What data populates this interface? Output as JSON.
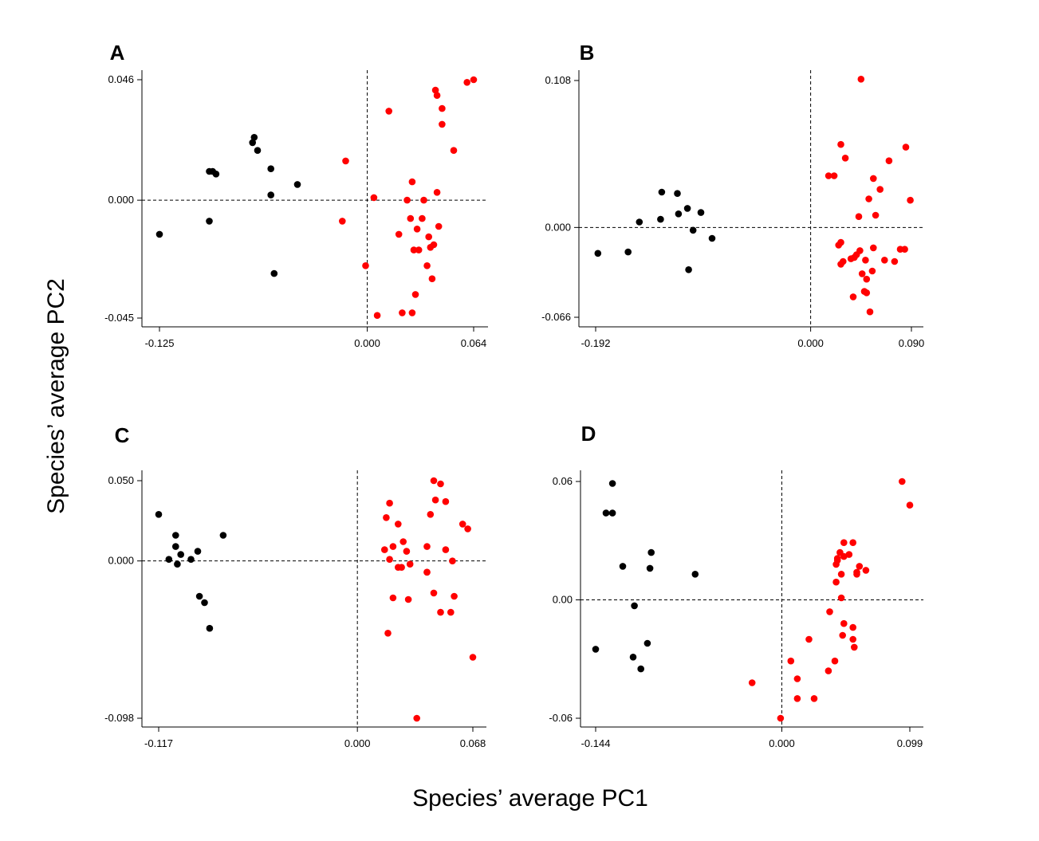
{
  "figure": {
    "xlabel": "Species’ average PC1",
    "ylabel": "Species’ average PC2"
  },
  "colors": {
    "group_black": "#000000",
    "group_red": "#ff0000",
    "reference": "#000000"
  },
  "chart_data": [
    {
      "type": "scatter",
      "panel": "A",
      "xlim": [
        -0.125,
        0.064
      ],
      "ylim": [
        -0.045,
        0.046
      ],
      "xticks": [
        "-0.125",
        "0.000",
        "0.064"
      ],
      "yticks": [
        "0.046",
        "0.000",
        "-0.045"
      ],
      "reference_lines": {
        "x": 0,
        "y": 0
      },
      "grid": false,
      "series": [
        {
          "color": "#000000",
          "points": [
            [
              -0.125,
              -0.013
            ],
            [
              -0.095,
              0.011
            ],
            [
              -0.093,
              0.011
            ],
            [
              -0.091,
              0.01
            ],
            [
              -0.095,
              -0.008
            ],
            [
              -0.069,
              0.022
            ],
            [
              -0.068,
              0.024
            ],
            [
              -0.066,
              0.019
            ],
            [
              -0.058,
              0.012
            ],
            [
              -0.058,
              0.002
            ],
            [
              -0.042,
              0.006
            ],
            [
              -0.056,
              -0.028
            ]
          ]
        },
        {
          "color": "#ff0000",
          "points": [
            [
              -0.013,
              0.015
            ],
            [
              -0.015,
              -0.008
            ],
            [
              -0.001,
              -0.025
            ],
            [
              0.004,
              0.001
            ],
            [
              0.006,
              -0.044
            ],
            [
              0.013,
              0.034
            ],
            [
              0.024,
              0.0
            ],
            [
              0.026,
              -0.007
            ],
            [
              0.027,
              0.007
            ],
            [
              0.028,
              -0.019
            ],
            [
              0.027,
              -0.043
            ],
            [
              0.021,
              -0.043
            ],
            [
              0.029,
              -0.036
            ],
            [
              0.03,
              -0.011
            ],
            [
              0.031,
              -0.019
            ],
            [
              0.033,
              -0.007
            ],
            [
              0.034,
              0.0
            ],
            [
              0.036,
              -0.025
            ],
            [
              0.037,
              -0.014
            ],
            [
              0.038,
              -0.018
            ],
            [
              0.039,
              -0.03
            ],
            [
              0.04,
              -0.017
            ],
            [
              0.042,
              0.003
            ],
            [
              0.043,
              -0.01
            ],
            [
              0.041,
              0.042
            ],
            [
              0.042,
              0.04
            ],
            [
              0.045,
              0.035
            ],
            [
              0.045,
              0.029
            ],
            [
              0.052,
              0.019
            ],
            [
              0.06,
              0.045
            ],
            [
              0.064,
              0.046
            ],
            [
              0.019,
              -0.013
            ]
          ]
        }
      ]
    },
    {
      "type": "scatter",
      "panel": "B",
      "xlim": [
        -0.192,
        0.09
      ],
      "ylim": [
        -0.066,
        0.108
      ],
      "xticks": [
        "-0.192",
        "0.000",
        "0.090"
      ],
      "yticks": [
        "0.108",
        "0.000",
        "-0.066"
      ],
      "reference_lines": {
        "x": 0,
        "y": 0
      },
      "grid": false,
      "series": [
        {
          "color": "#000000",
          "points": [
            [
              -0.19,
              -0.019
            ],
            [
              -0.163,
              -0.018
            ],
            [
              -0.153,
              0.004
            ],
            [
              -0.134,
              0.006
            ],
            [
              -0.133,
              0.026
            ],
            [
              -0.119,
              0.025
            ],
            [
              -0.118,
              0.01
            ],
            [
              -0.11,
              0.014
            ],
            [
              -0.105,
              -0.002
            ],
            [
              -0.098,
              0.011
            ],
            [
              -0.088,
              -0.008
            ],
            [
              -0.109,
              -0.031
            ]
          ]
        },
        {
          "color": "#ff0000",
          "points": [
            [
              0.016,
              0.038
            ],
            [
              0.021,
              0.038
            ],
            [
              0.025,
              -0.013
            ],
            [
              0.027,
              -0.011
            ],
            [
              0.027,
              -0.027
            ],
            [
              0.029,
              -0.025
            ],
            [
              0.027,
              0.061
            ],
            [
              0.031,
              0.051
            ],
            [
              0.036,
              -0.023
            ],
            [
              0.038,
              -0.051
            ],
            [
              0.039,
              -0.022
            ],
            [
              0.041,
              -0.02
            ],
            [
              0.043,
              0.008
            ],
            [
              0.044,
              -0.017
            ],
            [
              0.045,
              0.109
            ],
            [
              0.046,
              -0.034
            ],
            [
              0.048,
              -0.047
            ],
            [
              0.05,
              -0.048
            ],
            [
              0.049,
              -0.024
            ],
            [
              0.05,
              -0.038
            ],
            [
              0.052,
              0.021
            ],
            [
              0.053,
              -0.062
            ],
            [
              0.055,
              -0.032
            ],
            [
              0.056,
              0.036
            ],
            [
              0.056,
              -0.015
            ],
            [
              0.062,
              0.028
            ],
            [
              0.066,
              -0.024
            ],
            [
              0.07,
              0.049
            ],
            [
              0.075,
              -0.025
            ],
            [
              0.08,
              -0.016
            ],
            [
              0.084,
              -0.016
            ],
            [
              0.085,
              0.059
            ],
            [
              0.089,
              0.02
            ],
            [
              0.058,
              0.009
            ]
          ]
        }
      ]
    },
    {
      "type": "scatter",
      "panel": "C",
      "xlim": [
        -0.117,
        0.068
      ],
      "ylim": [
        -0.098,
        0.05
      ],
      "xticks": [
        "-0.117",
        "0.000",
        "0.068"
      ],
      "yticks": [
        "0.050",
        "0.000",
        "-0.098"
      ],
      "reference_lines": {
        "x": 0,
        "y": 0
      },
      "grid": false,
      "series": [
        {
          "color": "#000000",
          "points": [
            [
              -0.117,
              0.029
            ],
            [
              -0.111,
              0.001
            ],
            [
              -0.107,
              0.016
            ],
            [
              -0.107,
              0.009
            ],
            [
              -0.106,
              -0.002
            ],
            [
              -0.104,
              0.004
            ],
            [
              -0.098,
              0.001
            ],
            [
              -0.094,
              0.006
            ],
            [
              -0.093,
              -0.022
            ],
            [
              -0.09,
              -0.026
            ],
            [
              -0.087,
              -0.042
            ],
            [
              -0.079,
              0.016
            ]
          ]
        },
        {
          "color": "#ff0000",
          "points": [
            [
              0.019,
              0.036
            ],
            [
              0.017,
              0.027
            ],
            [
              0.016,
              0.007
            ],
            [
              0.019,
              0.001
            ],
            [
              0.021,
              0.009
            ],
            [
              0.021,
              -0.023
            ],
            [
              0.024,
              -0.004
            ],
            [
              0.024,
              0.023
            ],
            [
              0.026,
              -0.004
            ],
            [
              0.027,
              0.012
            ],
            [
              0.029,
              0.006
            ],
            [
              0.03,
              -0.024
            ],
            [
              0.031,
              -0.002
            ],
            [
              0.018,
              -0.045
            ],
            [
              0.035,
              -0.098
            ],
            [
              0.041,
              0.009
            ],
            [
              0.043,
              0.029
            ],
            [
              0.041,
              -0.007
            ],
            [
              0.045,
              0.05
            ],
            [
              0.046,
              0.038
            ],
            [
              0.045,
              -0.02
            ],
            [
              0.049,
              -0.032
            ],
            [
              0.049,
              0.048
            ],
            [
              0.052,
              0.037
            ],
            [
              0.052,
              0.007
            ],
            [
              0.055,
              -0.032
            ],
            [
              0.056,
              0.0
            ],
            [
              0.057,
              -0.022
            ],
            [
              0.062,
              0.023
            ],
            [
              0.065,
              0.02
            ],
            [
              0.068,
              -0.06
            ],
            [
              0.041,
              -0.007
            ]
          ]
        }
      ]
    },
    {
      "type": "scatter",
      "panel": "D",
      "xlim": [
        -0.144,
        0.099
      ],
      "ylim": [
        -0.06,
        0.06
      ],
      "xticks": [
        "-0.144",
        "0.000",
        "0.099"
      ],
      "yticks": [
        "0.06",
        "0.00",
        "-0.06"
      ],
      "reference_lines": {
        "x": 0,
        "y": 0
      },
      "grid": false,
      "series": [
        {
          "color": "#000000",
          "points": [
            [
              -0.144,
              -0.025
            ],
            [
              -0.136,
              0.044
            ],
            [
              -0.131,
              0.044
            ],
            [
              -0.131,
              0.059
            ],
            [
              -0.123,
              0.017
            ],
            [
              -0.114,
              -0.003
            ],
            [
              -0.115,
              -0.029
            ],
            [
              -0.109,
              -0.035
            ],
            [
              -0.104,
              -0.022
            ],
            [
              -0.102,
              0.016
            ],
            [
              -0.101,
              0.024
            ],
            [
              -0.067,
              0.013
            ]
          ]
        },
        {
          "color": "#ff0000",
          "points": [
            [
              -0.023,
              -0.042
            ],
            [
              -0.001,
              -0.06
            ],
            [
              0.007,
              -0.031
            ],
            [
              0.012,
              -0.04
            ],
            [
              0.012,
              -0.05
            ],
            [
              0.021,
              -0.02
            ],
            [
              0.025,
              -0.05
            ],
            [
              0.036,
              -0.036
            ],
            [
              0.037,
              -0.006
            ],
            [
              0.041,
              -0.031
            ],
            [
              0.042,
              0.009
            ],
            [
              0.042,
              0.018
            ],
            [
              0.043,
              0.02
            ],
            [
              0.043,
              0.021
            ],
            [
              0.045,
              0.024
            ],
            [
              0.046,
              0.013
            ],
            [
              0.046,
              0.001
            ],
            [
              0.047,
              -0.018
            ],
            [
              0.048,
              0.029
            ],
            [
              0.048,
              -0.012
            ],
            [
              0.048,
              0.022
            ],
            [
              0.052,
              0.023
            ],
            [
              0.055,
              -0.014
            ],
            [
              0.055,
              -0.02
            ],
            [
              0.056,
              -0.024
            ],
            [
              0.055,
              0.029
            ],
            [
              0.058,
              0.013
            ],
            [
              0.058,
              0.014
            ],
            [
              0.06,
              0.017
            ],
            [
              0.065,
              0.015
            ],
            [
              0.093,
              0.06
            ],
            [
              0.099,
              0.048
            ]
          ]
        }
      ]
    }
  ]
}
